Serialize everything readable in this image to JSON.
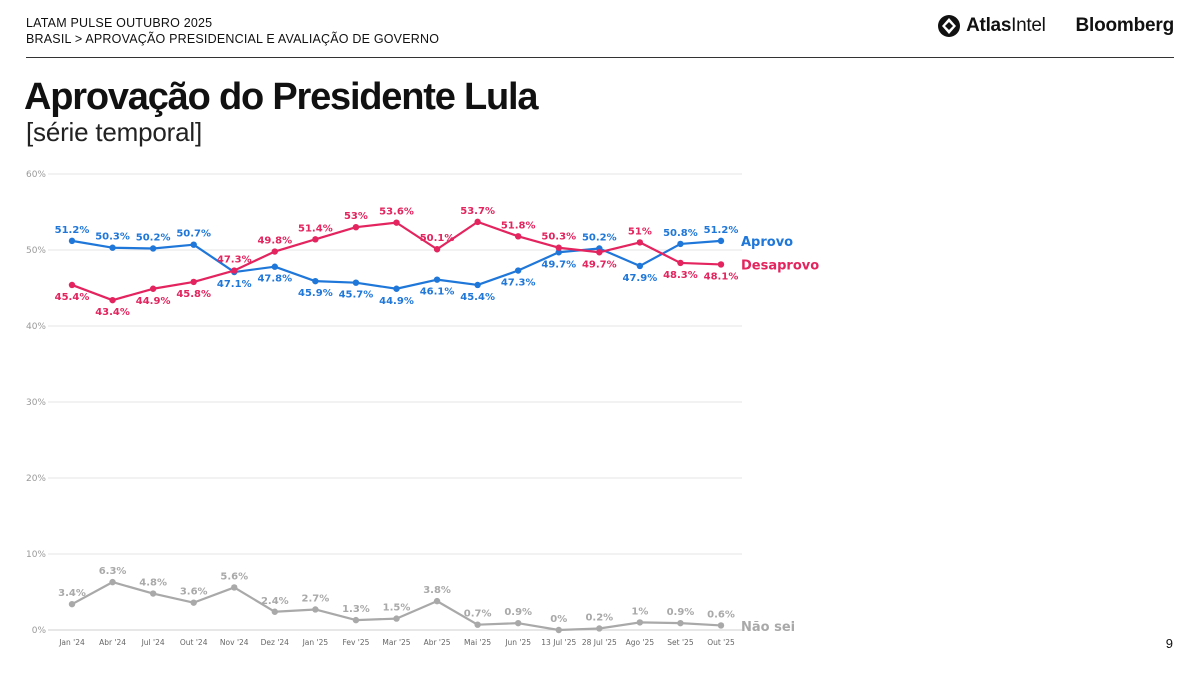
{
  "header": {
    "line1": "LATAM PULSE OUTUBRO 2025",
    "line2": "BRASIL > APROVAÇÃO PRESIDENCIAL E AVALIAÇÃO DE GOVERNO",
    "logo_atlas_bold": "Atlas",
    "logo_atlas_light": "Intel",
    "logo_bloomberg": "Bloomberg"
  },
  "title": "Aprovação do Presidente Lula",
  "subtitle": "[série temporal]",
  "page_number": "9",
  "colors": {
    "aprovo": "#1f77d9",
    "desaprovo": "#e3245e",
    "naosei": "#a9a9a9",
    "grid": "#e6e6e6",
    "axis_text": "#9a9a9a"
  },
  "chart_data": {
    "type": "line",
    "title": "Aprovação do Presidente Lula",
    "xlabel": "",
    "ylabel": "",
    "ylim": [
      0,
      60
    ],
    "yticks": [
      0,
      10,
      20,
      30,
      40,
      50,
      60
    ],
    "ytick_labels": [
      "0%",
      "10%",
      "20%",
      "30%",
      "40%",
      "50%",
      "60%"
    ],
    "categories": [
      "Jan '24",
      "Abr '24",
      "Jul '24",
      "Out '24",
      "Nov '24",
      "Dez '24",
      "Jan '25",
      "Fev '25",
      "Mar '25",
      "Abr '25",
      "Mai '25",
      "Jun '25",
      "13 Jul '25",
      "28 Jul '25",
      "Ago '25",
      "Set '25",
      "Out '25"
    ],
    "series": [
      {
        "name": "Aprovo",
        "values": [
          51.2,
          50.3,
          50.2,
          50.7,
          47.1,
          47.8,
          45.9,
          45.7,
          44.9,
          46.1,
          45.4,
          47.3,
          49.7,
          50.2,
          47.9,
          50.8,
          51.2
        ],
        "labels": [
          "51.2%",
          "50.3%",
          "50.2%",
          "50.7%",
          "47.1%",
          "47.8%",
          "45.9%",
          "45.7%",
          "44.9%",
          "46.1%",
          "45.4%",
          "47.3%",
          "49.7%",
          "50.2%",
          "47.9%",
          "50.8%",
          "51.2%"
        ]
      },
      {
        "name": "Desaprovo",
        "values": [
          45.4,
          43.4,
          44.9,
          45.8,
          47.3,
          49.8,
          51.4,
          53.0,
          53.6,
          50.1,
          53.7,
          51.8,
          50.3,
          49.7,
          51.0,
          48.3,
          48.1
        ],
        "labels": [
          "45.4%",
          "43.4%",
          "44.9%",
          "45.8%",
          "47.3%",
          "49.8%",
          "51.4%",
          "53%",
          "53.6%",
          "50.1%",
          "53.7%",
          "51.8%",
          "50.3%",
          "49.7%",
          "51%",
          "48.3%",
          "48.1%"
        ]
      },
      {
        "name": "Não sei",
        "values": [
          3.4,
          6.3,
          4.8,
          3.6,
          5.6,
          2.4,
          2.7,
          1.3,
          1.5,
          3.8,
          0.7,
          0.9,
          0.0,
          0.2,
          1.0,
          0.9,
          0.6
        ],
        "labels": [
          "3.4%",
          "6.3%",
          "4.8%",
          "3.6%",
          "5.6%",
          "2.4%",
          "2.7%",
          "1.3%",
          "1.5%",
          "3.8%",
          "0.7%",
          "0.9%",
          "0%",
          "0.2%",
          "1%",
          "0.9%",
          "0.6%"
        ]
      }
    ]
  }
}
